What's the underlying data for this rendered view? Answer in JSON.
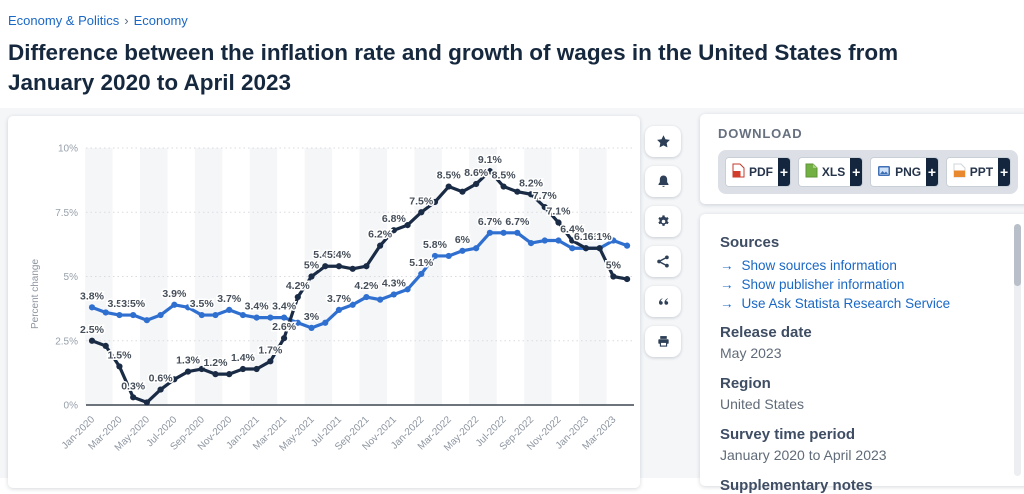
{
  "breadcrumb": {
    "separator": "›",
    "items": [
      {
        "label": "Economy & Politics"
      },
      {
        "label": "Economy"
      }
    ]
  },
  "page_title": "Difference between the inflation rate and growth of wages in the United States from January 2020 to April 2023",
  "toolbar": {
    "icons": [
      "favorite-star-icon",
      "notification-bell-icon",
      "settings-gear-icon",
      "share-icon",
      "cite-quote-icon",
      "print-icon"
    ]
  },
  "download": {
    "heading": "DOWNLOAD",
    "plus_label": "+",
    "buttons": [
      {
        "label": "PDF"
      },
      {
        "label": "XLS"
      },
      {
        "label": "PNG"
      },
      {
        "label": "PPT"
      }
    ]
  },
  "details": {
    "sources_heading": "Sources",
    "link_arrow": "→",
    "links": [
      "Show sources information",
      "Show publisher information",
      "Use Ask Statista Research Service"
    ],
    "sections": [
      {
        "heading": "Release date",
        "value": "May 2023"
      },
      {
        "heading": "Region",
        "value": "United States"
      },
      {
        "heading": "Survey time period",
        "value": "January 2020 to April 2023"
      },
      {
        "heading": "Supplementary notes",
        "value": ""
      }
    ]
  },
  "chart_data": {
    "type": "line",
    "title": "Difference between the inflation rate and growth of wages in the United States from January 2020 to April 2023",
    "xlabel": "",
    "ylabel": "Percent change",
    "ylim": [
      0,
      10
    ],
    "ytick_values": [
      0,
      2.5,
      5,
      7.5,
      10
    ],
    "yticks": [
      "0%",
      "2.5%",
      "5%",
      "7.5%",
      "10%"
    ],
    "grid": "dotted horizontal, alternating vertical month bands",
    "legend_position": "none",
    "x": [
      "Jan-2020",
      "Feb-2020",
      "Mar-2020",
      "Apr-2020",
      "May-2020",
      "Jun-2020",
      "Jul-2020",
      "Aug-2020",
      "Sep-2020",
      "Oct-2020",
      "Nov-2020",
      "Dec-2020",
      "Jan-2021",
      "Feb-2021",
      "Mar-2021",
      "Apr-2021",
      "May-2021",
      "Jun-2021",
      "Jul-2021",
      "Aug-2021",
      "Sep-2021",
      "Oct-2021",
      "Nov-2021",
      "Dec-2021",
      "Jan-2022",
      "Feb-2022",
      "Mar-2022",
      "Apr-2022",
      "May-2022",
      "Jun-2022",
      "Jul-2022",
      "Aug-2022",
      "Sep-2022",
      "Oct-2022",
      "Nov-2022",
      "Dec-2022",
      "Jan-2023",
      "Feb-2023",
      "Mar-2023",
      "Apr-2023"
    ],
    "series": [
      {
        "name": "Growth of wages",
        "color": "#2f6fd0",
        "values": [
          3.8,
          3.6,
          3.5,
          3.5,
          3.3,
          3.5,
          3.9,
          3.8,
          3.5,
          3.5,
          3.7,
          3.5,
          3.4,
          3.4,
          3.4,
          3.2,
          3.0,
          3.2,
          3.7,
          3.9,
          4.2,
          4.1,
          4.3,
          4.5,
          5.1,
          5.8,
          5.8,
          6.0,
          6.1,
          6.7,
          6.7,
          6.7,
          6.3,
          6.4,
          6.4,
          6.1,
          6.1,
          6.1,
          6.4,
          6.2
        ],
        "point_labels": [
          [
            0,
            "3.8%"
          ],
          [
            2,
            "3.5%"
          ],
          [
            3,
            "3.5%"
          ],
          [
            6,
            "3.9%"
          ],
          [
            8,
            "3.5%"
          ],
          [
            10,
            "3.7%"
          ],
          [
            12,
            "3.4%"
          ],
          [
            14,
            "3.4%"
          ],
          [
            16,
            "3%"
          ],
          [
            18,
            "3.7%"
          ],
          [
            20,
            "4.2%"
          ],
          [
            22,
            "4.3%"
          ],
          [
            24,
            "5.1%"
          ],
          [
            25,
            "5.8%"
          ],
          [
            27,
            "6%"
          ],
          [
            29,
            "6.7%"
          ],
          [
            31,
            "6.7%"
          ]
        ]
      },
      {
        "name": "Inflation rate",
        "color": "#1a2b45",
        "values": [
          2.5,
          2.3,
          1.5,
          0.3,
          0.1,
          0.6,
          1.0,
          1.3,
          1.4,
          1.2,
          1.2,
          1.4,
          1.4,
          1.7,
          2.6,
          4.2,
          5.0,
          5.4,
          5.4,
          5.3,
          5.4,
          6.2,
          6.8,
          7.0,
          7.5,
          7.9,
          8.5,
          8.3,
          8.6,
          9.1,
          8.5,
          8.3,
          8.2,
          7.7,
          7.1,
          6.4,
          6.1,
          6.1,
          5.0,
          4.9
        ],
        "point_labels": [
          [
            0,
            "2.5%"
          ],
          [
            2,
            "1.5%"
          ],
          [
            3,
            "0.3%"
          ],
          [
            5,
            "0.6%"
          ],
          [
            7,
            "1.3%"
          ],
          [
            9,
            "1.2%"
          ],
          [
            11,
            "1.4%"
          ],
          [
            13,
            "1.7%"
          ],
          [
            14,
            "2.6%"
          ],
          [
            15,
            "4.2%"
          ],
          [
            16,
            "5%"
          ],
          [
            17,
            "5.4%"
          ],
          [
            18,
            "5.4%"
          ],
          [
            21,
            "6.2%"
          ],
          [
            22,
            "6.8%"
          ],
          [
            24,
            "7.5%"
          ],
          [
            26,
            "8.5%"
          ],
          [
            28,
            "8.6%"
          ],
          [
            29,
            "9.1%"
          ],
          [
            30,
            "8.5%"
          ],
          [
            32,
            "8.2%"
          ],
          [
            33,
            "7.7%"
          ],
          [
            34,
            "7.1%"
          ],
          [
            35,
            "6.4%"
          ],
          [
            36,
            "6.1%"
          ],
          [
            37,
            "6.1%"
          ],
          [
            38,
            "5%"
          ]
        ]
      }
    ]
  }
}
